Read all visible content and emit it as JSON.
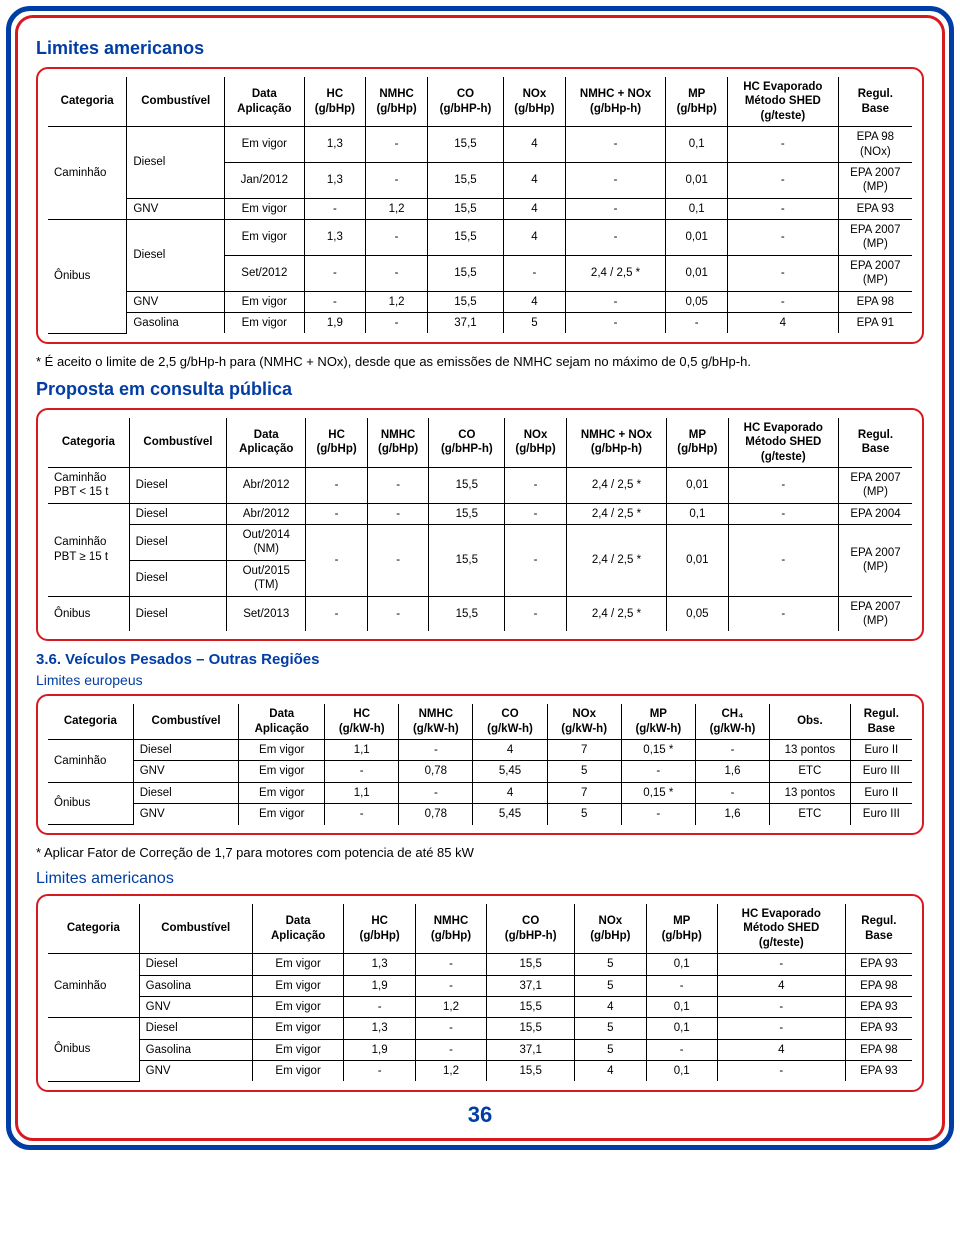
{
  "page_number": "36",
  "colors": {
    "outer_border": "#003da5",
    "inner_border": "#d71920",
    "heading": "#003da5",
    "text": "#000000",
    "bg": "#ffffff"
  },
  "sec1": {
    "title": "Limites americanos",
    "headers": [
      "Categoria",
      "Combustível",
      "Data\nAplicação",
      "HC\n(g/bHp)",
      "NMHC\n(g/bHp)",
      "CO\n(g/bHP-h)",
      "NOx\n(g/bHp)",
      "NMHC + NOx\n(g/bHp-h)",
      "MP\n(g/bHp)",
      "HC Evaporado\nMétodo SHED\n(g/teste)",
      "Regul.\nBase"
    ],
    "note": "* É aceito o limite de 2,5 g/bHp-h para (NMHC + NOx), desde que as emissões de NMHC sejam no máximo de 0,5 g/bHp-h."
  },
  "t1": {
    "r1": {
      "cat": "Caminhão",
      "fuel": "Diesel",
      "c": [
        "Em vigor",
        "1,3",
        "-",
        "15,5",
        "4",
        "-",
        "0,1",
        "-",
        "EPA 98\n(NOx)"
      ]
    },
    "r2": {
      "c": [
        "Jan/2012",
        "1,3",
        "-",
        "15,5",
        "4",
        "-",
        "0,01",
        "-",
        "EPA 2007\n(MP)"
      ]
    },
    "r3": {
      "fuel": "GNV",
      "c": [
        "Em vigor",
        "-",
        "1,2",
        "15,5",
        "4",
        "-",
        "0,1",
        "-",
        "EPA 93"
      ]
    },
    "r4": {
      "cat": "Ônibus",
      "fuel": "Diesel",
      "c": [
        "Em vigor",
        "1,3",
        "-",
        "15,5",
        "4",
        "-",
        "0,01",
        "-",
        "EPA 2007\n(MP)"
      ]
    },
    "r5": {
      "c": [
        "Set/2012",
        "-",
        "-",
        "15,5",
        "-",
        "2,4 / 2,5 *",
        "0,01",
        "-",
        "EPA 2007\n(MP)"
      ]
    },
    "r6": {
      "fuel": "GNV",
      "c": [
        "Em vigor",
        "-",
        "1,2",
        "15,5",
        "4",
        "-",
        "0,05",
        "-",
        "EPA 98"
      ]
    },
    "r7": {
      "fuel": "Gasolina",
      "c": [
        "Em vigor",
        "1,9",
        "-",
        "37,1",
        "5",
        "-",
        "-",
        "4",
        "EPA 91"
      ]
    }
  },
  "sec2": {
    "title": "Proposta em consulta pública",
    "headers": [
      "Categoria",
      "Combustível",
      "Data\nAplicação",
      "HC\n(g/bHp)",
      "NMHC\n(g/bHp)",
      "CO\n(g/bHP-h)",
      "NOx\n(g/bHp)",
      "NMHC + NOx\n(g/bHp-h)",
      "MP\n(g/bHp)",
      "HC Evaporado\nMétodo SHED\n(g/teste)",
      "Regul.\nBase"
    ]
  },
  "t2": {
    "r1": {
      "cat": "Caminhão\nPBT < 15 t",
      "fuel": "Diesel",
      "c": [
        "Abr/2012",
        "-",
        "-",
        "15,5",
        "-",
        "2,4 / 2,5 *",
        "0,01",
        "-",
        "EPA 2007\n(MP)"
      ]
    },
    "r2": {
      "cat": "Caminhão\nPBT ≥ 15 t",
      "fuel": "Diesel",
      "c": [
        "Abr/2012",
        "-",
        "-",
        "15,5",
        "-",
        "2,4 / 2,5 *",
        "0,1",
        "-",
        "EPA 2004"
      ]
    },
    "r3": {
      "fuel": "Diesel",
      "date": "Out/2014\n(NM)",
      "c": [
        "-",
        "-",
        "15,5",
        "-",
        "2,4 / 2,5 *",
        "0,01",
        "-",
        "EPA 2007\n(MP)"
      ]
    },
    "r4": {
      "fuel": "Diesel",
      "date": "Out/2015\n(TM)"
    },
    "r5": {
      "cat": "Ônibus",
      "fuel": "Diesel",
      "c": [
        "Set/2013",
        "-",
        "-",
        "15,5",
        "-",
        "2,4 / 2,5 *",
        "0,05",
        "-",
        "EPA 2007\n(MP)"
      ]
    }
  },
  "sec3": {
    "title": "3.6. Veículos Pesados – Outras Regiões",
    "sub": "Limites europeus",
    "headers": [
      "Categoria",
      "Combustível",
      "Data\nAplicação",
      "HC\n(g/kW-h)",
      "NMHC\n(g/kW-h)",
      "CO\n(g/kW-h)",
      "NOx\n(g/kW-h)",
      "MP\n(g/kW-h)",
      "CH₄\n(g/kW-h)",
      "Obs.",
      "Regul.\nBase"
    ],
    "note": "* Aplicar Fator de Correção de 1,7 para motores com potencia de até 85 kW"
  },
  "t3": {
    "r1": {
      "cat": "Caminhão",
      "fuel": "Diesel",
      "c": [
        "Em vigor",
        "1,1",
        "-",
        "4",
        "7",
        "0,15 *",
        "-",
        "13 pontos",
        "Euro II"
      ]
    },
    "r2": {
      "fuel": "GNV",
      "c": [
        "Em vigor",
        "-",
        "0,78",
        "5,45",
        "5",
        "-",
        "1,6",
        "ETC",
        "Euro III"
      ]
    },
    "r3": {
      "cat": "Ônibus",
      "fuel": "Diesel",
      "c": [
        "Em vigor",
        "1,1",
        "-",
        "4",
        "7",
        "0,15 *",
        "-",
        "13 pontos",
        "Euro II"
      ]
    },
    "r4": {
      "fuel": "GNV",
      "c": [
        "Em vigor",
        "-",
        "0,78",
        "5,45",
        "5",
        "-",
        "1,6",
        "ETC",
        "Euro III"
      ]
    }
  },
  "sec4": {
    "title": "Limites americanos",
    "headers": [
      "Categoria",
      "Combustível",
      "Data\nAplicação",
      "HC\n(g/bHp)",
      "NMHC\n(g/bHp)",
      "CO\n(g/bHP-h)",
      "NOx\n(g/bHp)",
      "MP\n(g/bHp)",
      "HC Evaporado\nMétodo SHED\n(g/teste)",
      "Regul.\nBase"
    ]
  },
  "t4": {
    "r1": {
      "cat": "Caminhão",
      "fuel": "Diesel",
      "c": [
        "Em vigor",
        "1,3",
        "-",
        "15,5",
        "5",
        "0,1",
        "-",
        "EPA 93"
      ]
    },
    "r2": {
      "fuel": "Gasolina",
      "c": [
        "Em vigor",
        "1,9",
        "-",
        "37,1",
        "5",
        "-",
        "4",
        "EPA 98"
      ]
    },
    "r3": {
      "fuel": "GNV",
      "c": [
        "Em vigor",
        "-",
        "1,2",
        "15,5",
        "4",
        "0,1",
        "-",
        "EPA 93"
      ]
    },
    "r4": {
      "cat": "Ônibus",
      "fuel": "Diesel",
      "c": [
        "Em vigor",
        "1,3",
        "-",
        "15,5",
        "5",
        "0,1",
        "-",
        "EPA 93"
      ]
    },
    "r5": {
      "fuel": "Gasolina",
      "c": [
        "Em vigor",
        "1,9",
        "-",
        "37,1",
        "5",
        "-",
        "4",
        "EPA 98"
      ]
    },
    "r6": {
      "fuel": "GNV",
      "c": [
        "Em vigor",
        "-",
        "1,2",
        "15,5",
        "4",
        "0,1",
        "-",
        "EPA 93"
      ]
    }
  }
}
